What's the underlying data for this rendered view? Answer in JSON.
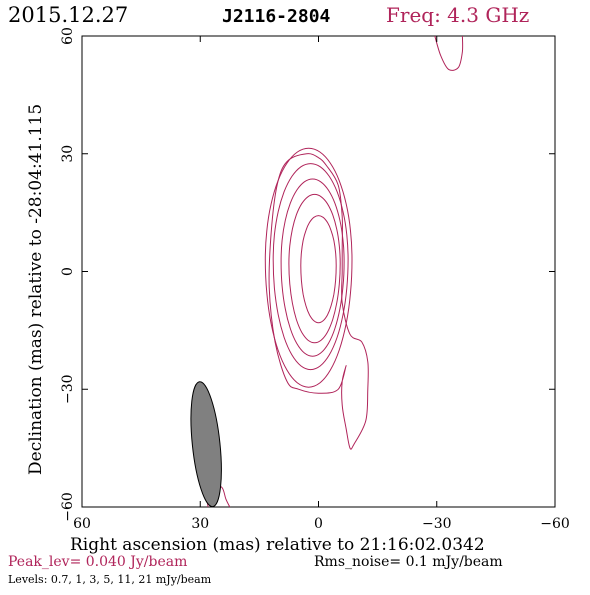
{
  "header": {
    "date": "2015.12.27",
    "source": "J2116-2804",
    "freq": "Freq: 4.3 GHz"
  },
  "footer": {
    "peak": "Peak_lev=  0.040 Jy/beam",
    "rms": "Rms_noise=   0.1 mJy/beam",
    "levels": "Levels: 0.7,   1,   3,   5,  11,  21 mJy/beam"
  },
  "colors": {
    "contour": "#b0245a",
    "frame": "#000000",
    "beam_fill": "#808080",
    "freq_text": "#b0245a",
    "peak_text": "#b0245a"
  },
  "chart_data": {
    "type": "contour",
    "title": "J2116-2804",
    "xlabel": "Right ascension (mas) relative to 21:16:02.0342",
    "ylabel": "Declination (mas) relative to -28:04:41.115",
    "xlim": [
      60,
      -60
    ],
    "ylim": [
      -60,
      60
    ],
    "xticks": [
      60,
      30,
      0,
      -30,
      -60
    ],
    "yticks": [
      -60,
      -30,
      0,
      30,
      60
    ],
    "xtick_labels": [
      "60",
      "30",
      "0",
      "−30",
      "−60"
    ],
    "ytick_labels": [
      "−60",
      "−30",
      "0",
      "30",
      "60"
    ],
    "levels_mJy": [
      0.7,
      1,
      3,
      5,
      11,
      21
    ],
    "peak_Jy_per_beam": 0.04,
    "rms_mJy_per_beam": 0.1,
    "core": {
      "ra": 0,
      "dec": 1
    },
    "rings": [
      {
        "name": "contour-1",
        "rx": 11,
        "ry": 29,
        "cx": 2.5,
        "cy": 3
      },
      {
        "name": "contour-2",
        "rx": 9.5,
        "ry": 25,
        "cx": 2,
        "cy": 3
      },
      {
        "name": "contour-3",
        "rx": 8,
        "ry": 21.5,
        "cx": 1.5,
        "cy": 2.5
      },
      {
        "name": "contour-4",
        "rx": 6.5,
        "ry": 18,
        "cx": 1,
        "cy": 2
      },
      {
        "name": "contour-5",
        "rx": 4.5,
        "ry": 13,
        "cx": 0,
        "cy": 1.5
      }
    ],
    "outer_contour": [
      [
        5,
        30
      ],
      [
        -3,
        27
      ],
      [
        -9,
        20
      ],
      [
        -12,
        8
      ],
      [
        -12,
        -10
      ],
      [
        -11,
        -30
      ],
      [
        -9,
        -38
      ],
      [
        -6,
        -42
      ],
      [
        -3,
        -44
      ],
      [
        -2,
        -40
      ],
      [
        -4,
        -30
      ],
      [
        -5,
        -24
      ],
      [
        -8,
        -24
      ],
      [
        -12,
        -18
      ],
      [
        -13,
        -10
      ],
      [
        -12,
        0
      ],
      [
        -11,
        14
      ],
      [
        -9,
        22
      ],
      [
        -6,
        28
      ],
      [
        -1,
        30
      ]
    ],
    "outer_contour_real": [
      [
        3,
        30
      ],
      [
        8,
        28
      ],
      [
        10.5,
        22
      ],
      [
        12,
        10
      ],
      [
        12.5,
        -4
      ],
      [
        11,
        -18
      ],
      [
        8,
        -28
      ],
      [
        5,
        -30
      ],
      [
        0,
        -31
      ],
      [
        -5,
        -30
      ],
      [
        -7,
        -24
      ],
      [
        -6,
        -28
      ],
      [
        -6,
        -34
      ],
      [
        -7,
        -40
      ],
      [
        -8,
        -45
      ],
      [
        -9,
        -44
      ],
      [
        -12,
        -38
      ],
      [
        -12.5,
        -30
      ],
      [
        -12.5,
        -23
      ],
      [
        -11,
        -18
      ],
      [
        -8,
        -16
      ],
      [
        -6,
        -8
      ],
      [
        -6,
        0
      ],
      [
        -6,
        6
      ],
      [
        -6,
        14
      ],
      [
        -5,
        22
      ],
      [
        -2,
        27
      ],
      [
        0,
        29
      ]
    ],
    "top_right_contour": [
      [
        -29.5,
        60
      ],
      [
        -31,
        55
      ],
      [
        -33,
        51.5
      ],
      [
        -35.5,
        52
      ],
      [
        -36.5,
        56
      ],
      [
        -36.5,
        60
      ]
    ],
    "bottom_contour": [
      [
        28,
        -60
      ],
      [
        28.5,
        -56
      ],
      [
        27,
        -54
      ],
      [
        24.5,
        -55
      ],
      [
        23.5,
        -58
      ],
      [
        22.5,
        -60
      ]
    ],
    "beam": {
      "ra": 28.5,
      "dec": -44,
      "major_mas": 32,
      "minor_mas": 7,
      "pa_deg": -6
    }
  }
}
